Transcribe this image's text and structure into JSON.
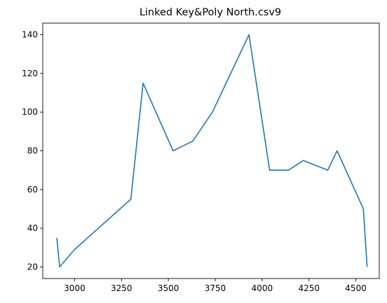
{
  "chart_data": {
    "type": "line",
    "title": "Linked Key&Poly North.csv9",
    "xlabel": "",
    "ylabel": "",
    "xlim": [
      2830,
      4625
    ],
    "ylim": [
      14,
      146
    ],
    "x_ticks": [
      3000,
      3250,
      3500,
      3750,
      4000,
      4250,
      4500
    ],
    "y_ticks": [
      20,
      40,
      60,
      80,
      100,
      120,
      140
    ],
    "grid": false,
    "legend": "none",
    "series": [
      {
        "color": "#1f77b4",
        "x": [
          2905,
          2920,
          3000,
          3300,
          3365,
          3525,
          3630,
          3735,
          3930,
          4040,
          4140,
          4220,
          4350,
          4400,
          4540,
          4560
        ],
        "y": [
          35,
          20,
          29,
          55,
          115,
          80,
          85,
          100,
          140,
          70,
          70,
          75,
          70,
          80,
          50,
          20
        ]
      }
    ]
  }
}
